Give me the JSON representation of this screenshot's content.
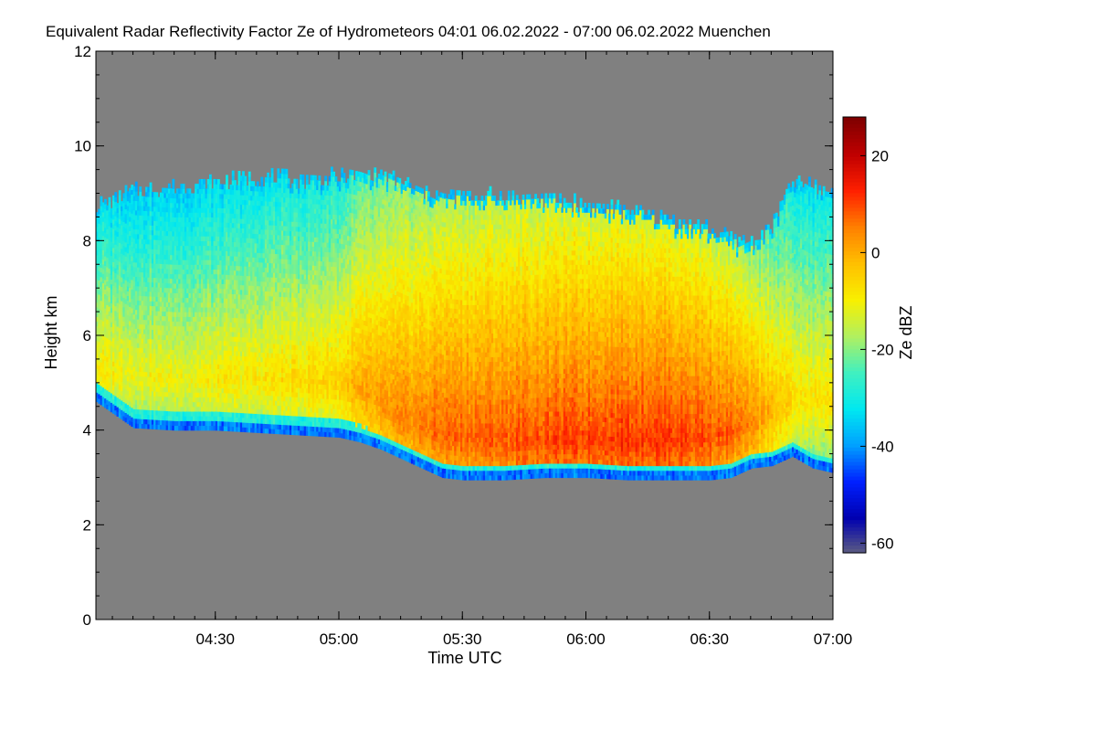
{
  "chart_data": {
    "type": "heatmap",
    "title": "Equivalent Radar Reflectivity Factor Ze of Hydrometeors   04:01 06.02.2022 - 07:00 06.02.2022 Muenchen",
    "xlabel": "Time UTC",
    "ylabel": "Height km",
    "colorbar_label": "Ze dBZ",
    "x_range_minutes": [
      241,
      420
    ],
    "y_range_km": [
      0,
      12
    ],
    "x_ticks": [
      {
        "minute": 270,
        "label": "04:30"
      },
      {
        "minute": 300,
        "label": "05:00"
      },
      {
        "minute": 330,
        "label": "05:30"
      },
      {
        "minute": 360,
        "label": "06:00"
      },
      {
        "minute": 390,
        "label": "06:30"
      },
      {
        "minute": 420,
        "label": "07:00"
      }
    ],
    "y_ticks": [
      {
        "value": 0,
        "label": "0"
      },
      {
        "value": 2,
        "label": "2"
      },
      {
        "value": 4,
        "label": "4"
      },
      {
        "value": 6,
        "label": "6"
      },
      {
        "value": 8,
        "label": "8"
      },
      {
        "value": 10,
        "label": "10"
      },
      {
        "value": 12,
        "label": "12"
      }
    ],
    "colorbar_range_dbz": [
      -62,
      28
    ],
    "colorbar_ticks": [
      {
        "value": 20,
        "label": "20"
      },
      {
        "value": 0,
        "label": "0"
      },
      {
        "value": -20,
        "label": "-20"
      },
      {
        "value": -40,
        "label": "-40"
      },
      {
        "value": -60,
        "label": "-60"
      }
    ],
    "no_data_color": "#808080",
    "colormap": [
      "#606080",
      "#0000b0",
      "#0020ff",
      "#00a0ff",
      "#00e8f0",
      "#40f0c0",
      "#b0f060",
      "#f8f000",
      "#ffc000",
      "#ff8000",
      "#ff2000",
      "#c00000",
      "#800000"
    ],
    "echo_profile": {
      "minutes": [
        241,
        250,
        260,
        270,
        280,
        290,
        300,
        305,
        310,
        315,
        320,
        325,
        330,
        340,
        350,
        360,
        370,
        380,
        390,
        395,
        400,
        405,
        410,
        415,
        420
      ],
      "base_km": [
        4.6,
        4.05,
        4.0,
        4.0,
        3.95,
        3.9,
        3.85,
        3.75,
        3.6,
        3.4,
        3.2,
        3.0,
        2.95,
        2.95,
        3.0,
        3.0,
        2.95,
        2.95,
        2.95,
        3.0,
        3.2,
        3.25,
        3.45,
        3.2,
        3.1
      ],
      "top_km": [
        8.7,
        9.0,
        9.1,
        9.2,
        9.3,
        9.25,
        9.3,
        9.35,
        9.35,
        9.2,
        9.0,
        8.9,
        8.9,
        8.9,
        8.85,
        8.7,
        8.6,
        8.4,
        8.2,
        8.0,
        7.9,
        8.3,
        9.2,
        9.1,
        9.0
      ],
      "core_km": [
        5.2,
        5.1,
        5.0,
        5.0,
        5.0,
        5.0,
        4.9,
        4.8,
        4.5,
        4.2,
        4.0,
        3.9,
        3.8,
        3.7,
        3.7,
        3.7,
        3.7,
        3.7,
        3.8,
        3.9,
        4.1,
        4.3,
        4.6,
        4.6,
        4.5
      ],
      "core_dbz": [
        -8,
        -10,
        -10,
        -9,
        -8,
        -6,
        -4,
        0,
        2,
        4,
        6,
        8,
        8,
        9,
        10,
        11,
        12,
        12,
        10,
        8,
        4,
        0,
        -6,
        -8,
        -6
      ]
    }
  }
}
